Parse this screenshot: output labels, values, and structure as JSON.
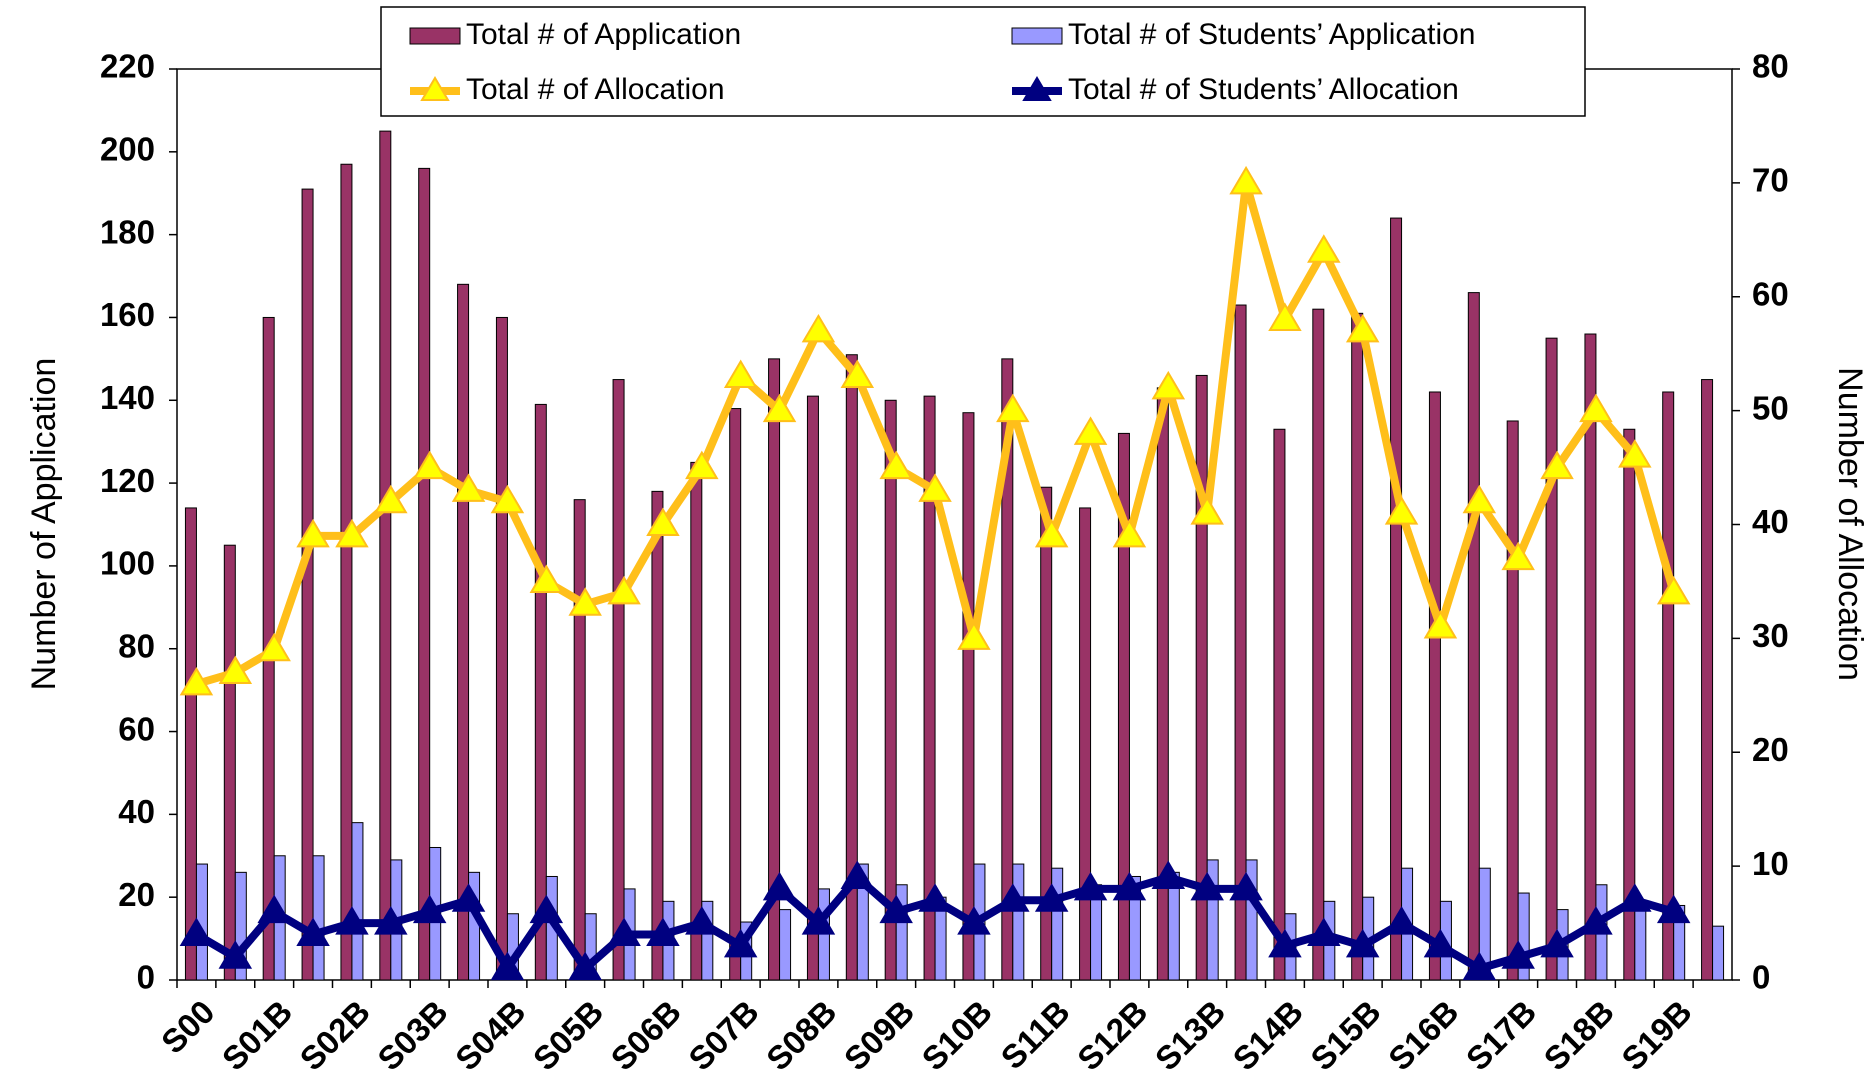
{
  "chart_data": {
    "type": "bar_line",
    "categories": [
      "S00",
      null,
      "S01B",
      null,
      "S02B",
      null,
      "S03B",
      null,
      "S04B",
      null,
      "S05B",
      null,
      "S06B",
      null,
      "S07B",
      null,
      "S08B",
      null,
      "S09B",
      null,
      "S10B",
      null,
      "S11B",
      null,
      "S12B",
      null,
      "S13B",
      null,
      "S14B",
      null,
      "S15B",
      null,
      "S16B",
      null,
      "S17B",
      null,
      "S18B",
      null,
      "S19B",
      null
    ],
    "y_label": "Number of Application",
    "y2_label": "Number of Allocation",
    "ylim": [
      0,
      220
    ],
    "yticks": [
      0,
      20,
      40,
      60,
      80,
      100,
      120,
      140,
      160,
      180,
      200,
      220
    ],
    "y2lim": [
      0,
      80
    ],
    "y2ticks": [
      0,
      10,
      20,
      30,
      40,
      50,
      60,
      70,
      80
    ],
    "series": [
      {
        "name": "Total # of Application",
        "kind": "bar",
        "color": "#993366",
        "values": [
          114,
          105,
          160,
          191,
          197,
          205,
          196,
          168,
          160,
          139,
          116,
          145,
          118,
          125,
          138,
          150,
          141,
          151,
          140,
          141,
          137,
          150,
          119,
          114,
          132,
          143,
          146,
          163,
          133,
          162,
          161,
          184,
          142,
          166,
          135,
          155,
          156,
          133,
          142,
          145
        ]
      },
      {
        "name": "Total # of Students’ Application",
        "kind": "bar",
        "color": "#9999ff",
        "values": [
          28,
          26,
          30,
          30,
          38,
          29,
          32,
          26,
          16,
          25,
          16,
          22,
          19,
          19,
          14,
          17,
          22,
          28,
          23,
          20,
          28,
          28,
          27,
          23,
          25,
          26,
          29,
          29,
          16,
          19,
          20,
          27,
          19,
          27,
          21,
          17,
          23,
          18,
          18,
          13
        ]
      },
      {
        "name": "Total # of Allocation",
        "kind": "line",
        "axis": "y2",
        "color": "#ffbf1a",
        "marker_color": "#ffff00",
        "values": [
          26,
          27,
          29,
          39,
          39,
          42,
          45,
          43,
          42,
          35,
          33,
          34,
          40,
          45,
          53,
          50,
          57,
          53,
          45,
          43,
          30,
          50,
          39,
          48,
          39,
          52,
          41,
          70,
          58,
          64,
          57,
          41,
          31,
          42,
          37,
          45,
          50,
          46,
          34,
          null
        ]
      },
      {
        "name": "Total # of Students’ Allocation",
        "kind": "line",
        "axis": "y2",
        "color": "#000080",
        "marker_color": "#000080",
        "values": [
          4,
          2,
          6,
          4,
          5,
          5,
          6,
          7,
          1,
          6,
          1,
          4,
          4,
          5,
          3,
          8,
          5,
          9,
          6,
          7,
          5,
          7,
          7,
          8,
          8,
          9,
          8,
          8,
          3,
          4,
          3,
          5,
          3,
          1,
          2,
          3,
          5,
          7,
          6,
          null
        ]
      }
    ]
  }
}
